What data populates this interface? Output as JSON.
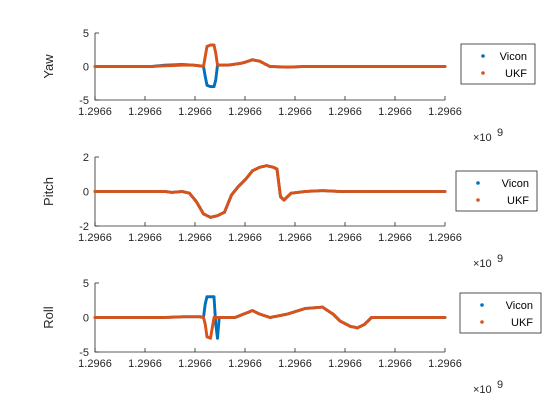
{
  "chart_data": [
    {
      "type": "scatter",
      "ylabel": "Yaw",
      "xlabel": "",
      "ylim": [
        -5,
        5
      ],
      "yticks": [
        -5,
        0,
        5
      ],
      "xlim": [
        0,
        1
      ],
      "xtick_labels": [
        "1.2966",
        "1.2966",
        "1.2966",
        "1.2966",
        "1.2966",
        "1.2966",
        "1.2966",
        "1.2966"
      ],
      "x_exponent": "×10",
      "x_exponent_power": "9",
      "legend": "right",
      "series": [
        {
          "name": "Vicon",
          "color": "#0072BD",
          "points": [
            [
              0.0,
              0
            ],
            [
              0.16,
              0
            ],
            [
              0.2,
              0.2
            ],
            [
              0.25,
              0.3
            ],
            [
              0.28,
              0.2
            ],
            [
              0.3,
              0.1
            ],
            [
              0.31,
              0.0
            ],
            [
              0.315,
              -1.5
            ],
            [
              0.32,
              -2.8
            ],
            [
              0.33,
              -3.0
            ],
            [
              0.34,
              -3.0
            ],
            [
              0.345,
              -2.0
            ],
            [
              0.35,
              0.2
            ],
            [
              0.38,
              0.2
            ],
            [
              0.42,
              0.5
            ],
            [
              0.45,
              1.0
            ],
            [
              0.47,
              0.8
            ],
            [
              0.5,
              0
            ],
            [
              0.55,
              -0.1
            ],
            [
              0.6,
              0
            ],
            [
              0.7,
              0
            ],
            [
              0.8,
              0
            ],
            [
              0.9,
              0
            ],
            [
              1.0,
              0
            ]
          ]
        },
        {
          "name": "UKF",
          "color": "#D95319",
          "points": [
            [
              0.0,
              0
            ],
            [
              0.16,
              0
            ],
            [
              0.2,
              0.1
            ],
            [
              0.25,
              0.2
            ],
            [
              0.28,
              0.2
            ],
            [
              0.3,
              0.1
            ],
            [
              0.31,
              0.0
            ],
            [
              0.315,
              1.5
            ],
            [
              0.32,
              3.0
            ],
            [
              0.33,
              3.2
            ],
            [
              0.34,
              3.2
            ],
            [
              0.345,
              2.0
            ],
            [
              0.35,
              0.2
            ],
            [
              0.38,
              0.2
            ],
            [
              0.42,
              0.5
            ],
            [
              0.45,
              1.0
            ],
            [
              0.47,
              0.8
            ],
            [
              0.5,
              0
            ],
            [
              0.55,
              -0.1
            ],
            [
              0.6,
              0
            ],
            [
              0.7,
              0
            ],
            [
              0.8,
              0
            ],
            [
              0.9,
              0
            ],
            [
              1.0,
              0
            ]
          ]
        }
      ]
    },
    {
      "type": "scatter",
      "ylabel": "Pitch",
      "xlabel": "",
      "ylim": [
        -2,
        2
      ],
      "yticks": [
        -2,
        0,
        2
      ],
      "xlim": [
        0,
        1
      ],
      "xtick_labels": [
        "1.2966",
        "1.2966",
        "1.2966",
        "1.2966",
        "1.2966",
        "1.2966",
        "1.2966",
        "1.2966"
      ],
      "x_exponent": "×10",
      "x_exponent_power": "9",
      "legend": "right",
      "series": [
        {
          "name": "Vicon",
          "color": "#0072BD",
          "points": [
            [
              0.0,
              0
            ],
            [
              0.15,
              0
            ],
            [
              0.2,
              0
            ],
            [
              0.22,
              -0.05
            ],
            [
              0.25,
              0
            ],
            [
              0.27,
              -0.1
            ],
            [
              0.29,
              -0.6
            ],
            [
              0.31,
              -1.3
            ],
            [
              0.33,
              -1.5
            ],
            [
              0.35,
              -1.4
            ],
            [
              0.37,
              -1.2
            ],
            [
              0.39,
              -0.2
            ],
            [
              0.41,
              0.3
            ],
            [
              0.43,
              0.7
            ],
            [
              0.45,
              1.2
            ],
            [
              0.47,
              1.4
            ],
            [
              0.49,
              1.5
            ],
            [
              0.51,
              1.4
            ],
            [
              0.52,
              1.3
            ],
            [
              0.53,
              -0.3
            ],
            [
              0.54,
              -0.5
            ],
            [
              0.56,
              -0.1
            ],
            [
              0.6,
              0
            ],
            [
              0.65,
              0.05
            ],
            [
              0.7,
              0
            ],
            [
              0.8,
              0
            ],
            [
              0.9,
              0
            ],
            [
              1.0,
              0
            ]
          ]
        },
        {
          "name": "UKF",
          "color": "#D95319",
          "points": [
            [
              0.0,
              0
            ],
            [
              0.15,
              0
            ],
            [
              0.2,
              0
            ],
            [
              0.22,
              -0.05
            ],
            [
              0.25,
              0
            ],
            [
              0.27,
              -0.1
            ],
            [
              0.29,
              -0.6
            ],
            [
              0.31,
              -1.3
            ],
            [
              0.33,
              -1.5
            ],
            [
              0.35,
              -1.4
            ],
            [
              0.37,
              -1.2
            ],
            [
              0.39,
              -0.2
            ],
            [
              0.41,
              0.3
            ],
            [
              0.43,
              0.7
            ],
            [
              0.45,
              1.2
            ],
            [
              0.47,
              1.4
            ],
            [
              0.49,
              1.5
            ],
            [
              0.51,
              1.4
            ],
            [
              0.52,
              1.3
            ],
            [
              0.53,
              -0.3
            ],
            [
              0.54,
              -0.5
            ],
            [
              0.56,
              -0.1
            ],
            [
              0.6,
              0
            ],
            [
              0.65,
              0.05
            ],
            [
              0.7,
              0
            ],
            [
              0.8,
              0
            ],
            [
              0.9,
              0
            ],
            [
              1.0,
              0
            ]
          ]
        }
      ]
    },
    {
      "type": "scatter",
      "ylabel": "Roll",
      "xlabel": "",
      "ylim": [
        -5,
        5
      ],
      "yticks": [
        -5,
        0,
        5
      ],
      "xlim": [
        0,
        1
      ],
      "xtick_labels": [
        "1.2966",
        "1.2966",
        "1.2966",
        "1.2966",
        "1.2966",
        "1.2966",
        "1.2966",
        "1.2966"
      ],
      "x_exponent": "×10",
      "x_exponent_power": "9",
      "legend": "right",
      "series": [
        {
          "name": "Vicon",
          "color": "#0072BD",
          "points": [
            [
              0.0,
              0
            ],
            [
              0.15,
              0
            ],
            [
              0.2,
              0
            ],
            [
              0.25,
              0.1
            ],
            [
              0.3,
              0.1
            ],
            [
              0.31,
              0.0
            ],
            [
              0.315,
              2.0
            ],
            [
              0.32,
              3.0
            ],
            [
              0.33,
              3.0
            ],
            [
              0.34,
              3.0
            ],
            [
              0.345,
              -1.0
            ],
            [
              0.35,
              -3.0
            ],
            [
              0.355,
              0
            ],
            [
              0.4,
              0
            ],
            [
              0.45,
              1.0
            ],
            [
              0.47,
              0.5
            ],
            [
              0.5,
              0
            ],
            [
              0.55,
              0.5
            ],
            [
              0.6,
              1.3
            ],
            [
              0.65,
              1.5
            ],
            [
              0.68,
              0.5
            ],
            [
              0.7,
              -0.5
            ],
            [
              0.73,
              -1.3
            ],
            [
              0.75,
              -1.5
            ],
            [
              0.77,
              -1.0
            ],
            [
              0.79,
              0
            ],
            [
              0.85,
              0
            ],
            [
              0.9,
              0
            ],
            [
              1.0,
              0
            ]
          ]
        },
        {
          "name": "UKF",
          "color": "#D95319",
          "points": [
            [
              0.0,
              0
            ],
            [
              0.15,
              0
            ],
            [
              0.2,
              0
            ],
            [
              0.25,
              0.1
            ],
            [
              0.3,
              0.1
            ],
            [
              0.31,
              0.0
            ],
            [
              0.315,
              -1.0
            ],
            [
              0.32,
              -2.8
            ],
            [
              0.33,
              -3.0
            ],
            [
              0.34,
              0
            ],
            [
              0.345,
              0
            ],
            [
              0.35,
              0
            ],
            [
              0.355,
              0
            ],
            [
              0.4,
              0
            ],
            [
              0.45,
              1.0
            ],
            [
              0.47,
              0.5
            ],
            [
              0.5,
              0
            ],
            [
              0.55,
              0.5
            ],
            [
              0.6,
              1.3
            ],
            [
              0.65,
              1.5
            ],
            [
              0.68,
              0.5
            ],
            [
              0.7,
              -0.5
            ],
            [
              0.73,
              -1.3
            ],
            [
              0.75,
              -1.5
            ],
            [
              0.77,
              -1.0
            ],
            [
              0.79,
              0
            ],
            [
              0.85,
              0
            ],
            [
              0.9,
              0
            ],
            [
              1.0,
              0
            ]
          ]
        }
      ]
    }
  ]
}
